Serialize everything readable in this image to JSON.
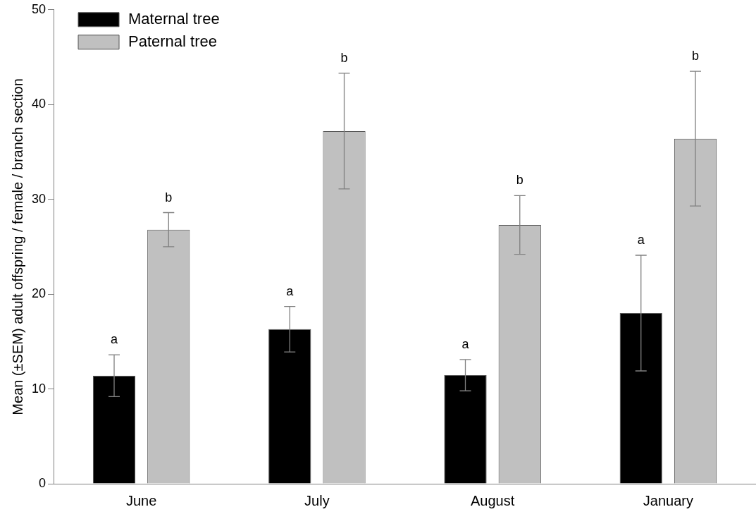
{
  "chart_data": {
    "type": "bar",
    "ylabel": "Mean (±SEM) adult offspring / female / branch section",
    "categories": [
      "June",
      "July",
      "August",
      "January"
    ],
    "series": [
      {
        "name": "Maternal tree",
        "color": "#000000",
        "values": [
          11.4,
          16.3,
          11.45,
          18.0
        ],
        "errors": [
          2.2,
          2.4,
          1.65,
          6.1
        ]
      },
      {
        "name": "Paternal tree",
        "color": "#c0c0c0",
        "values": [
          26.8,
          37.2,
          27.3,
          36.4
        ],
        "errors": [
          1.8,
          6.1,
          3.1,
          7.1
        ]
      }
    ],
    "ylim": [
      0,
      50
    ],
    "yticks": [
      0,
      10,
      20,
      30,
      40,
      50
    ],
    "grid": false,
    "legend": "top left",
    "annotations": [
      "a",
      "b",
      "a",
      "b",
      "a",
      "b",
      "a",
      "b"
    ]
  }
}
